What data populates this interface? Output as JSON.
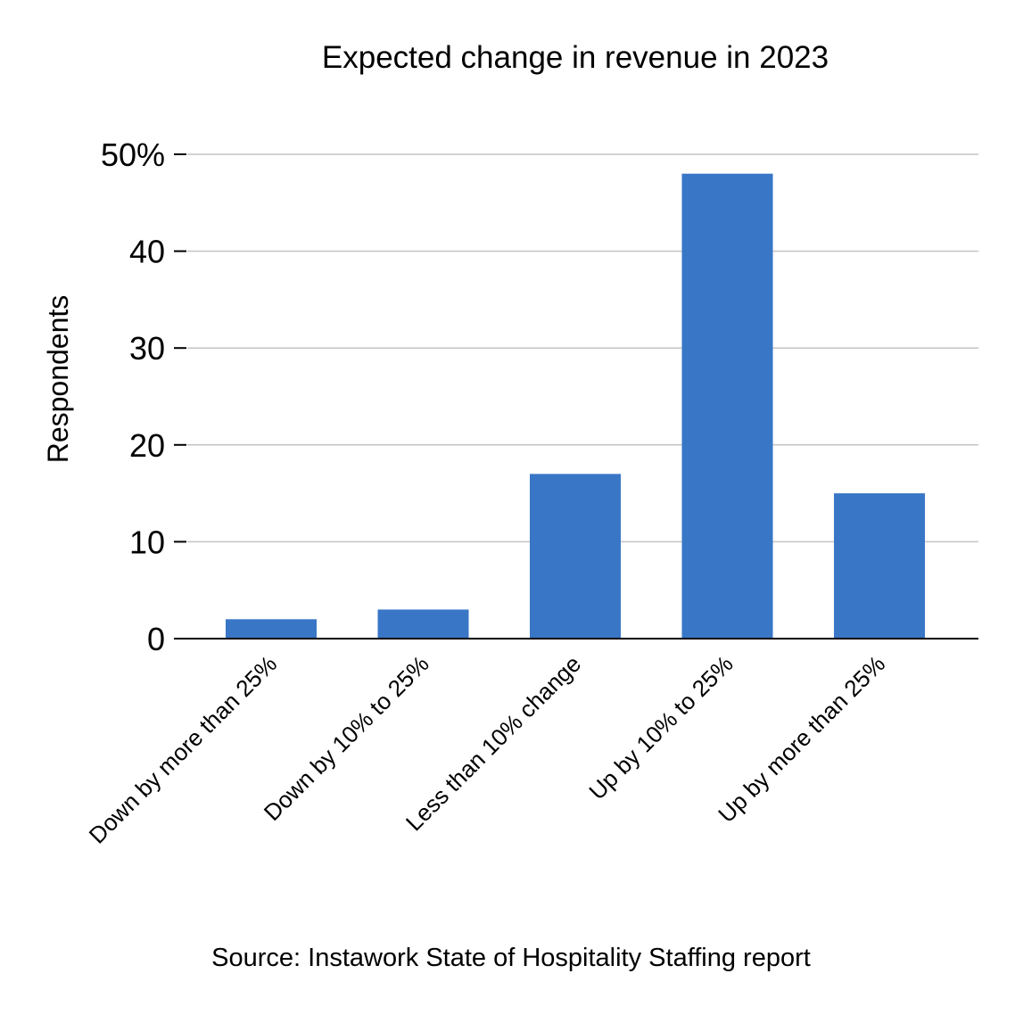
{
  "chart_data": {
    "type": "bar",
    "title": "Expected change in revenue in 2023",
    "xlabel": "",
    "ylabel": "Respondents",
    "categories": [
      "Down by more than 25%",
      "Down by 10% to 25%",
      "Less than 10% change",
      "Up by 10% to 25%",
      "Up by more than 25%"
    ],
    "values": [
      2,
      3,
      17,
      48,
      15
    ],
    "value_unit": "%",
    "ylim": [
      0,
      50
    ],
    "yticks": [
      0,
      10,
      20,
      30,
      40,
      50
    ],
    "ytick_labels": [
      "0",
      "10",
      "20",
      "30",
      "40",
      "50%"
    ],
    "grid": true,
    "legend": "none",
    "bar_color": "#3976c6",
    "source": "Source: Instawork State of Hospitality Staffing report"
  }
}
